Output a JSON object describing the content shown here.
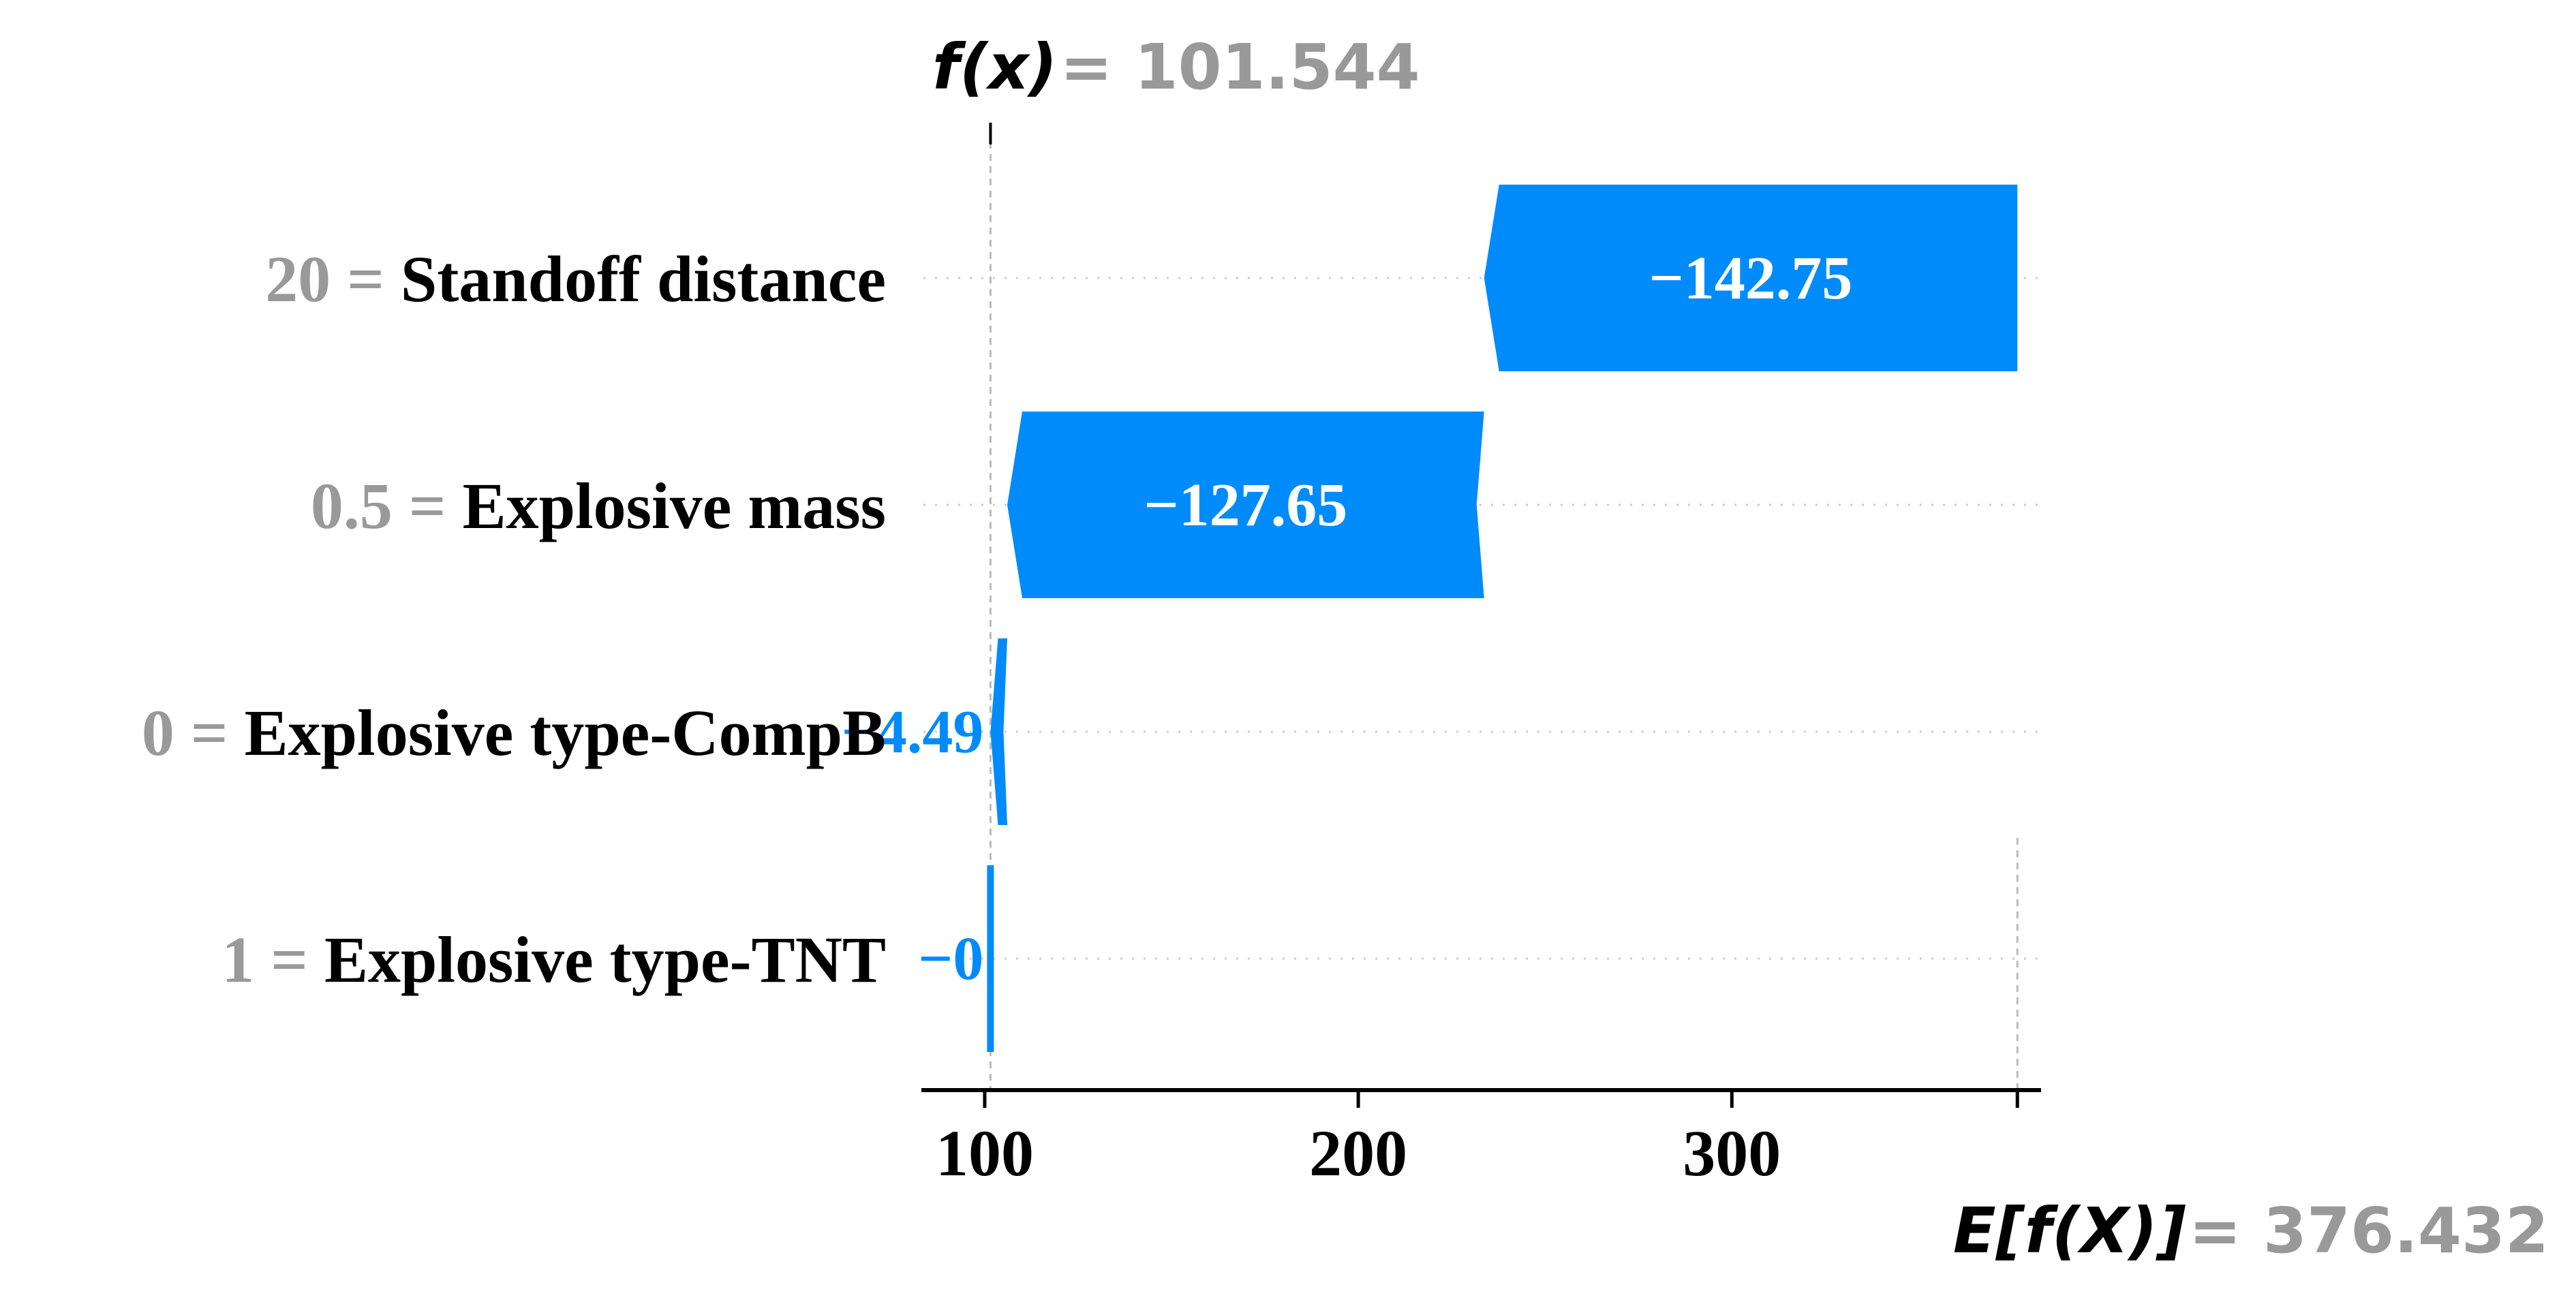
{
  "chart_data": {
    "type": "waterfall",
    "fx": {
      "label": "f(x)",
      "value_text": "= 101.544",
      "value": 101.544
    },
    "efx": {
      "label": "E[f(X)]",
      "value_text": "= 376.432",
      "value": 376.432
    },
    "features": [
      {
        "value": "20",
        "separator": "=",
        "name": "Standoff distance",
        "contribution": -142.75,
        "label": "−142.75"
      },
      {
        "value": "0.5",
        "separator": "=",
        "name": "Explosive mass",
        "contribution": -127.65,
        "label": "−127.65"
      },
      {
        "value": "0",
        "separator": "=",
        "name": "Explosive type-CompB",
        "contribution": -4.49,
        "label": "−4.49"
      },
      {
        "value": "1",
        "separator": "=",
        "name": "Explosive type-TNT",
        "contribution": 0,
        "label": "−0"
      }
    ],
    "x_ticks": [
      100,
      200,
      300
    ],
    "xlim": [
      84.5,
      385.5
    ],
    "colors": {
      "negative": "#008bfb",
      "text_gray": "#999999",
      "axis": "#000000",
      "grid": "#cccccc"
    }
  }
}
